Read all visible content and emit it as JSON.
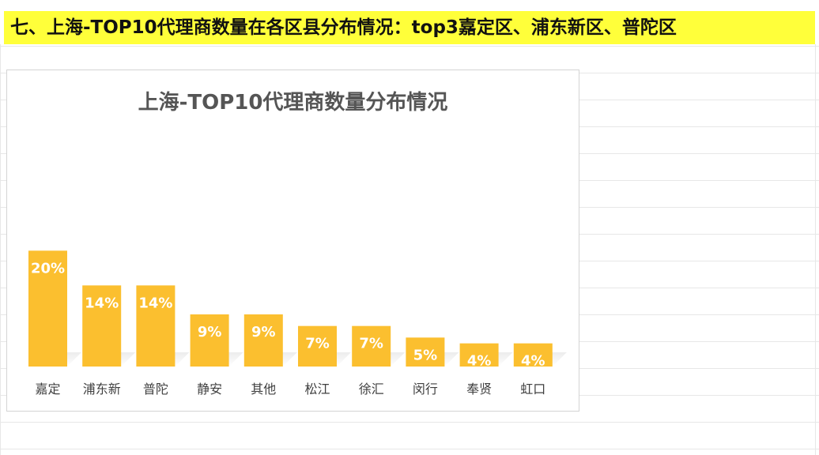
{
  "headline": "七、上海-TOP10代理商数量在各区县分布情况：top3嘉定区、浦东新区、普陀区",
  "colors": {
    "headline_bg": "#ffff3a",
    "bar": "#fbbf2f",
    "shadow": "#d9d9d9"
  },
  "chart_data": {
    "type": "bar",
    "title": "上海-TOP10代理商数量分布情况",
    "categories": [
      "嘉定",
      "浦东新",
      "普陀",
      "静安",
      "其他",
      "松江",
      "徐汇",
      "闵行",
      "奉贤",
      "虹口"
    ],
    "values": [
      20,
      14,
      14,
      9,
      9,
      7,
      7,
      5,
      4,
      4
    ],
    "data_labels": [
      "20%",
      "14%",
      "14%",
      "9%",
      "9%",
      "7%",
      "7%",
      "5%",
      "4%",
      "4%"
    ],
    "unit": "%",
    "ylim": [
      0,
      22.5
    ],
    "grid": false,
    "legend": "none"
  }
}
